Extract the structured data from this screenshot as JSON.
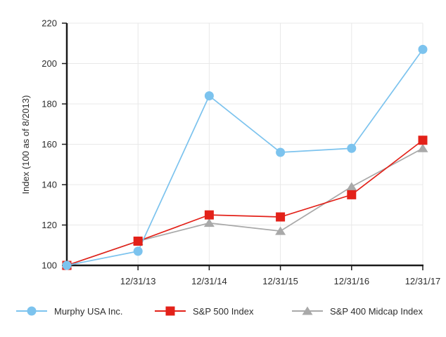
{
  "chart_data": {
    "type": "line",
    "title": "",
    "xlabel": "",
    "ylabel": "Index (100 as of 8/2013)",
    "ylim": [
      100,
      220
    ],
    "y_ticks": [
      100,
      120,
      140,
      160,
      180,
      200,
      220
    ],
    "categories": [
      "",
      "12/31/13",
      "12/31/14",
      "12/31/15",
      "12/31/16",
      "12/31/17"
    ],
    "grid": true,
    "legend_position": "bottom",
    "background_color": "#ffffff",
    "grid_color": "#e8e8e8",
    "axis_color": "#1a1a1a",
    "text_color": "#2d2d2d",
    "series": [
      {
        "name": "Murphy USA Inc.",
        "marker": "circle",
        "color": "#7cc3ee",
        "values": [
          100,
          107,
          184,
          156,
          158,
          207
        ]
      },
      {
        "name": "S&P 500 Index",
        "marker": "square",
        "color": "#e32119",
        "values": [
          100,
          112,
          125,
          124,
          135,
          162
        ]
      },
      {
        "name": "S&P 400 Midcap Index",
        "marker": "triangle",
        "color": "#a9a9a9",
        "values": [
          100,
          112,
          121,
          117,
          139,
          158
        ]
      }
    ]
  }
}
